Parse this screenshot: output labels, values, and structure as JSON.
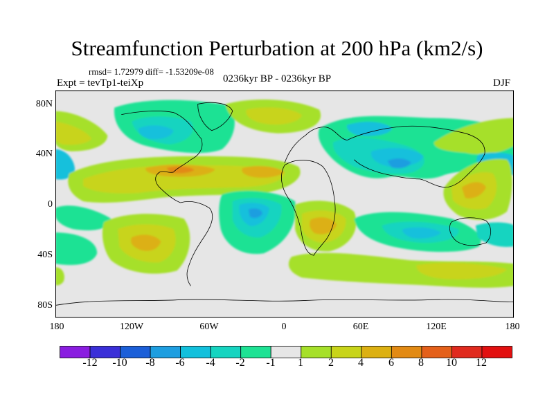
{
  "title": "Streamfunction Perturbation at 200 hPa (km2/s)",
  "stats_text": "rmsd= 1.72979 diff= -1.53209e-08",
  "expt_text": "Expt = tevTp1-teiXp",
  "period_text": "0236kyr BP - 0236kyr BP",
  "season_text": "DJF",
  "map": {
    "lat_labels": [
      "80N",
      "40N",
      "0",
      "40S",
      "80S"
    ],
    "lon_labels": [
      "180",
      "120W",
      "60W",
      "0",
      "60E",
      "120E",
      "180"
    ]
  },
  "colorbar": {
    "labels": [
      "-12",
      "-10",
      "-8",
      "-6",
      "-4",
      "-2",
      "-1",
      "1",
      "2",
      "4",
      "6",
      "8",
      "10",
      "12"
    ],
    "colors": [
      "#8a1de0",
      "#3a2fd8",
      "#1b5fd8",
      "#1e9ee0",
      "#12c0dc",
      "#16d4c0",
      "#1ee294",
      "#e6e6e6",
      "#a6e02a",
      "#c8d41a",
      "#dcb012",
      "#e28a14",
      "#e4601a",
      "#e02a1e",
      "#e21010"
    ]
  },
  "colors": {
    "ocean_neutral": "#e6e6e6",
    "neg1": "#1ee294",
    "neg2": "#16d4c0",
    "neg3": "#12c0dc",
    "neg4": "#1e9ee0",
    "pos1": "#a6e02a",
    "pos2": "#c8d41a",
    "pos3": "#dcb012",
    "pos4": "#e28a14"
  }
}
